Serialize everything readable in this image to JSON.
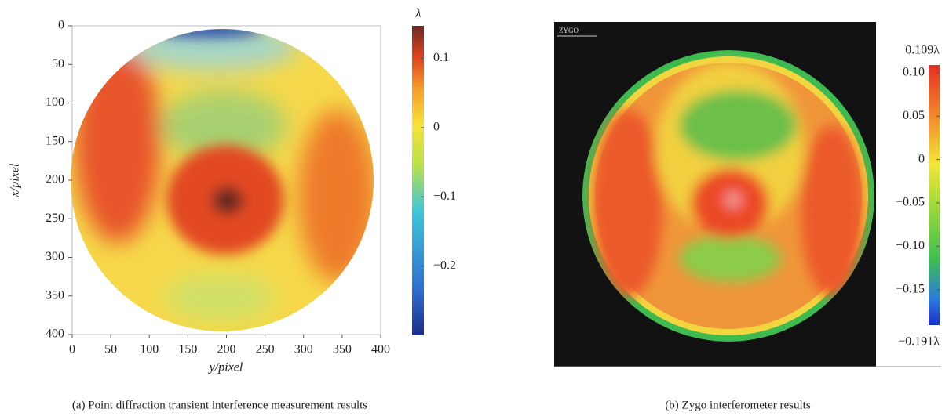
{
  "chart_data": [
    {
      "type": "heatmap",
      "caption": "(a) Point diffraction transient interference measurement results",
      "xlabel": "y/pixel",
      "ylabel": "x/pixel",
      "colorbar_label": "λ",
      "xlim": [
        0,
        400
      ],
      "ylim": [
        0,
        400
      ],
      "xticks": [
        0,
        50,
        100,
        150,
        200,
        250,
        300,
        350,
        400
      ],
      "yticks": [
        0,
        50,
        100,
        150,
        200,
        250,
        300,
        350,
        400
      ],
      "clim": [
        -0.3,
        0.147
      ],
      "cticks": [
        {
          "value": 0.1,
          "label": "0.1"
        },
        0,
        {
          "value": -0.1,
          "label": "−0.1"
        },
        {
          "value": -0.2,
          "label": "−0.2"
        }
      ]
    },
    {
      "type": "heatmap",
      "caption": "(b) Zygo interferometer results",
      "logo": "ZYGO",
      "clim": [
        {
          "value": -0.191,
          "label": "−0.191λ"
        },
        {
          "value": 0.109,
          "label": "0.109λ"
        }
      ],
      "cticks": [
        {
          "value": 0.1,
          "label": "0.10"
        },
        {
          "value": 0.05,
          "label": "0.05"
        },
        0,
        {
          "value": -0.05,
          "label": "−0.05"
        },
        {
          "value": -0.1,
          "label": "−0.10"
        },
        {
          "value": -0.15,
          "label": "−0.15"
        }
      ]
    }
  ]
}
